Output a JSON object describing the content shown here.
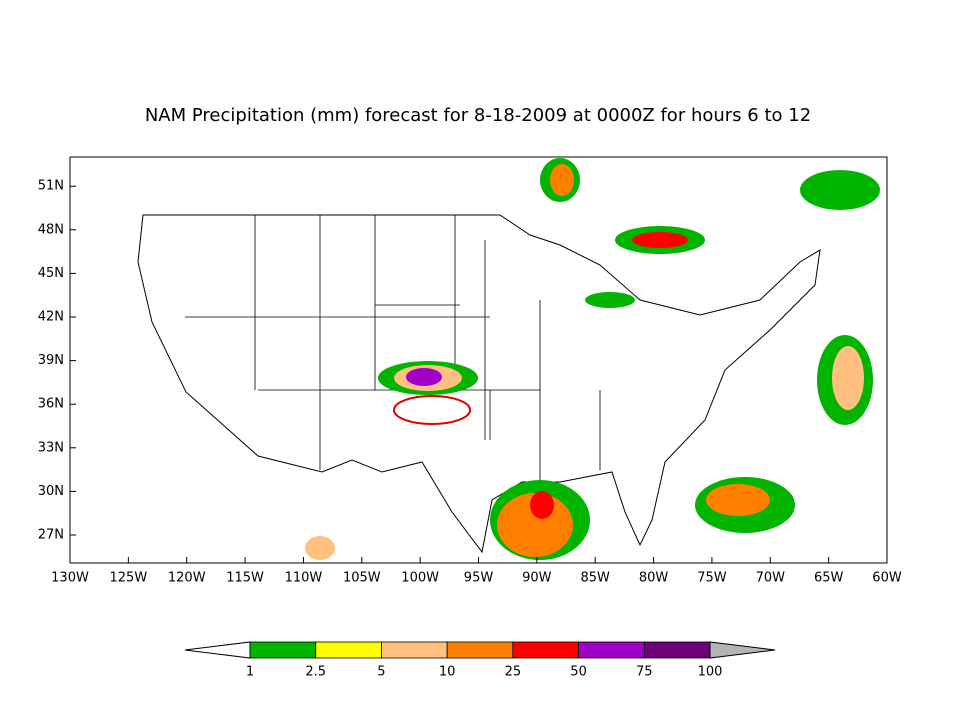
{
  "map": {
    "title": "NAM Precipitation (mm) forecast for 8-18-2009 at 0000Z for hours 6 to 12",
    "lat_labels": [
      "27N",
      "30N",
      "33N",
      "36N",
      "39N",
      "42N",
      "45N",
      "48N",
      "51N"
    ],
    "lon_labels": [
      "130W",
      "125W",
      "120W",
      "115W",
      "110W",
      "105W",
      "100W",
      "95W",
      "90W",
      "85W",
      "80W",
      "75W",
      "70W",
      "65W",
      "60W"
    ],
    "colorbar": {
      "ticks": [
        1,
        2.5,
        5,
        10,
        25,
        50,
        75,
        100
      ],
      "colors": [
        "#00b400",
        "#ffff00",
        "#ffc080",
        "#ff8000",
        "#ff0000",
        "#a000c8",
        "#6e0078"
      ]
    }
  }
}
